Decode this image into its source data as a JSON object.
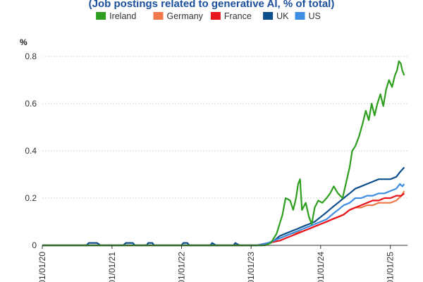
{
  "chart_data": {
    "type": "line",
    "subtitle": "(Job postings related to generative AI, % of total)",
    "ylabel": "%",
    "ylim": [
      0,
      0.8
    ],
    "yticks": [
      0,
      0.2,
      0.4,
      0.6,
      0.8
    ],
    "ytick_labels": [
      "0",
      "0.2",
      "0.4",
      "0.6",
      "0.8"
    ],
    "xlim": [
      "2020-01-01",
      "2025-04-01"
    ],
    "xticks": [
      "2020-01-01",
      "2021-01-01",
      "2022-01-01",
      "2023-01-01",
      "2024-01-01",
      "2025-01-01"
    ],
    "xtick_labels": [
      "01/01/20",
      "01/01/21",
      "01/01/22",
      "01/01/23",
      "01/01/24",
      "01/01/25"
    ],
    "grid": true,
    "legend_position": "top",
    "series": [
      {
        "name": "Ireland",
        "color": "#2e9e1e",
        "points": [
          [
            "2020-01-01",
            0
          ],
          [
            "2023-03-15",
            0
          ],
          [
            "2023-04-15",
            0.01
          ],
          [
            "2023-05-15",
            0.05
          ],
          [
            "2023-06-15",
            0.13
          ],
          [
            "2023-07-01",
            0.2
          ],
          [
            "2023-07-25",
            0.19
          ],
          [
            "2023-08-10",
            0.15
          ],
          [
            "2023-08-25",
            0.2
          ],
          [
            "2023-09-05",
            0.26
          ],
          [
            "2023-09-15",
            0.28
          ],
          [
            "2023-09-25",
            0.15
          ],
          [
            "2023-10-15",
            0.18
          ],
          [
            "2023-11-01",
            0.12
          ],
          [
            "2023-11-15",
            0.09
          ],
          [
            "2023-12-01",
            0.16
          ],
          [
            "2023-12-20",
            0.19
          ],
          [
            "2024-01-10",
            0.18
          ],
          [
            "2024-02-01",
            0.2
          ],
          [
            "2024-02-20",
            0.22
          ],
          [
            "2024-03-10",
            0.25
          ],
          [
            "2024-04-01",
            0.22
          ],
          [
            "2024-04-25",
            0.2
          ],
          [
            "2024-05-15",
            0.27
          ],
          [
            "2024-06-01",
            0.33
          ],
          [
            "2024-06-15",
            0.4
          ],
          [
            "2024-07-01",
            0.42
          ],
          [
            "2024-07-20",
            0.46
          ],
          [
            "2024-08-10",
            0.52
          ],
          [
            "2024-08-25",
            0.57
          ],
          [
            "2024-09-10",
            0.53
          ],
          [
            "2024-09-25",
            0.6
          ],
          [
            "2024-10-10",
            0.55
          ],
          [
            "2024-10-25",
            0.6
          ],
          [
            "2024-11-10",
            0.64
          ],
          [
            "2024-11-25",
            0.59
          ],
          [
            "2024-12-10",
            0.66
          ],
          [
            "2024-12-25",
            0.7
          ],
          [
            "2025-01-10",
            0.67
          ],
          [
            "2025-01-25",
            0.72
          ],
          [
            "2025-02-05",
            0.74
          ],
          [
            "2025-02-15",
            0.78
          ],
          [
            "2025-02-25",
            0.77
          ],
          [
            "2025-03-05",
            0.74
          ],
          [
            "2025-03-15",
            0.72
          ]
        ]
      },
      {
        "name": "Germany",
        "color": "#f0784a",
        "points": [
          [
            "2020-01-01",
            0
          ],
          [
            "2023-02-01",
            0
          ],
          [
            "2023-03-01",
            0.005
          ],
          [
            "2023-04-01",
            0.01
          ],
          [
            "2023-05-01",
            0.02
          ],
          [
            "2023-06-01",
            0.03
          ],
          [
            "2023-07-01",
            0.04
          ],
          [
            "2023-08-01",
            0.05
          ],
          [
            "2023-09-01",
            0.055
          ],
          [
            "2023-10-01",
            0.06
          ],
          [
            "2023-11-01",
            0.07
          ],
          [
            "2023-12-01",
            0.08
          ],
          [
            "2024-01-01",
            0.09
          ],
          [
            "2024-02-01",
            0.1
          ],
          [
            "2024-03-01",
            0.11
          ],
          [
            "2024-04-01",
            0.12
          ],
          [
            "2024-05-01",
            0.13
          ],
          [
            "2024-06-01",
            0.15
          ],
          [
            "2024-07-01",
            0.16
          ],
          [
            "2024-08-01",
            0.16
          ],
          [
            "2024-09-01",
            0.17
          ],
          [
            "2024-10-01",
            0.17
          ],
          [
            "2024-11-01",
            0.18
          ],
          [
            "2024-12-01",
            0.18
          ],
          [
            "2025-01-01",
            0.18
          ],
          [
            "2025-02-01",
            0.19
          ],
          [
            "2025-03-01",
            0.21
          ],
          [
            "2025-03-15",
            0.23
          ]
        ]
      },
      {
        "name": "France",
        "color": "#e8141c",
        "points": [
          [
            "2020-01-01",
            0
          ],
          [
            "2023-02-01",
            0
          ],
          [
            "2023-03-01",
            0.005
          ],
          [
            "2023-04-01",
            0.01
          ],
          [
            "2023-05-01",
            0.015
          ],
          [
            "2023-06-01",
            0.02
          ],
          [
            "2023-07-01",
            0.03
          ],
          [
            "2023-08-01",
            0.04
          ],
          [
            "2023-09-01",
            0.05
          ],
          [
            "2023-10-01",
            0.06
          ],
          [
            "2023-11-01",
            0.07
          ],
          [
            "2023-12-01",
            0.08
          ],
          [
            "2024-01-01",
            0.09
          ],
          [
            "2024-02-01",
            0.1
          ],
          [
            "2024-03-01",
            0.11
          ],
          [
            "2024-04-01",
            0.12
          ],
          [
            "2024-05-01",
            0.13
          ],
          [
            "2024-06-01",
            0.15
          ],
          [
            "2024-07-01",
            0.16
          ],
          [
            "2024-08-01",
            0.17
          ],
          [
            "2024-09-01",
            0.18
          ],
          [
            "2024-10-01",
            0.19
          ],
          [
            "2024-11-01",
            0.19
          ],
          [
            "2024-12-01",
            0.2
          ],
          [
            "2025-01-01",
            0.2
          ],
          [
            "2025-02-01",
            0.21
          ],
          [
            "2025-03-01",
            0.21
          ],
          [
            "2025-03-15",
            0.22
          ]
        ]
      },
      {
        "name": "UK",
        "color": "#0c4f8c",
        "points": [
          [
            "2020-01-01",
            0
          ],
          [
            "2020-08-20",
            0
          ],
          [
            "2020-09-01",
            0.01
          ],
          [
            "2020-10-15",
            0.01
          ],
          [
            "2020-11-01",
            0
          ],
          [
            "2021-03-01",
            0
          ],
          [
            "2021-03-15",
            0.01
          ],
          [
            "2021-04-20",
            0.01
          ],
          [
            "2021-05-01",
            0
          ],
          [
            "2021-07-01",
            0
          ],
          [
            "2021-07-10",
            0.01
          ],
          [
            "2021-08-01",
            0.01
          ],
          [
            "2021-08-10",
            0
          ],
          [
            "2022-01-01",
            0
          ],
          [
            "2022-01-10",
            0.01
          ],
          [
            "2022-02-01",
            0.01
          ],
          [
            "2022-02-10",
            0
          ],
          [
            "2022-06-01",
            0
          ],
          [
            "2022-06-10",
            0.01
          ],
          [
            "2022-07-01",
            0
          ],
          [
            "2022-10-01",
            0
          ],
          [
            "2022-10-10",
            0.01
          ],
          [
            "2022-11-01",
            0
          ],
          [
            "2023-03-01",
            0
          ],
          [
            "2023-04-01",
            0.01
          ],
          [
            "2023-05-01",
            0.02
          ],
          [
            "2023-06-01",
            0.04
          ],
          [
            "2023-07-01",
            0.05
          ],
          [
            "2023-08-01",
            0.06
          ],
          [
            "2023-09-01",
            0.07
          ],
          [
            "2023-10-01",
            0.08
          ],
          [
            "2023-11-01",
            0.09
          ],
          [
            "2023-12-01",
            0.1
          ],
          [
            "2024-01-01",
            0.12
          ],
          [
            "2024-02-01",
            0.14
          ],
          [
            "2024-03-01",
            0.16
          ],
          [
            "2024-04-01",
            0.18
          ],
          [
            "2024-05-01",
            0.2
          ],
          [
            "2024-06-01",
            0.22
          ],
          [
            "2024-07-01",
            0.24
          ],
          [
            "2024-08-01",
            0.25
          ],
          [
            "2024-09-01",
            0.26
          ],
          [
            "2024-10-01",
            0.27
          ],
          [
            "2024-11-01",
            0.28
          ],
          [
            "2024-12-01",
            0.28
          ],
          [
            "2025-01-01",
            0.28
          ],
          [
            "2025-02-01",
            0.29
          ],
          [
            "2025-02-20",
            0.31
          ],
          [
            "2025-03-15",
            0.33
          ]
        ]
      },
      {
        "name": "US",
        "color": "#3d8ee0",
        "points": [
          [
            "2020-01-01",
            0
          ],
          [
            "2023-02-01",
            0
          ],
          [
            "2023-03-01",
            0.005
          ],
          [
            "2023-04-01",
            0.01
          ],
          [
            "2023-05-01",
            0.02
          ],
          [
            "2023-06-01",
            0.03
          ],
          [
            "2023-07-01",
            0.04
          ],
          [
            "2023-08-01",
            0.05
          ],
          [
            "2023-09-01",
            0.06
          ],
          [
            "2023-10-01",
            0.07
          ],
          [
            "2023-11-01",
            0.08
          ],
          [
            "2023-12-01",
            0.09
          ],
          [
            "2024-01-01",
            0.1
          ],
          [
            "2024-02-01",
            0.11
          ],
          [
            "2024-03-01",
            0.13
          ],
          [
            "2024-04-01",
            0.15
          ],
          [
            "2024-05-01",
            0.17
          ],
          [
            "2024-06-01",
            0.18
          ],
          [
            "2024-07-01",
            0.2
          ],
          [
            "2024-08-01",
            0.2
          ],
          [
            "2024-09-01",
            0.21
          ],
          [
            "2024-10-01",
            0.21
          ],
          [
            "2024-11-01",
            0.22
          ],
          [
            "2024-12-01",
            0.22
          ],
          [
            "2025-01-01",
            0.23
          ],
          [
            "2025-02-01",
            0.24
          ],
          [
            "2025-02-20",
            0.26
          ],
          [
            "2025-03-05",
            0.25
          ],
          [
            "2025-03-15",
            0.26
          ]
        ]
      }
    ]
  }
}
